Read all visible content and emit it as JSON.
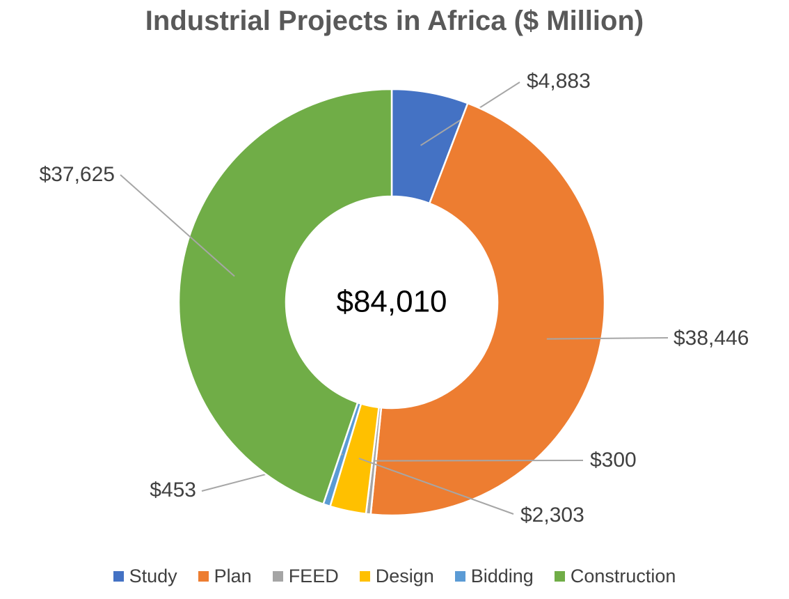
{
  "chart_data": {
    "type": "pie",
    "title": "Industrial Projects in Africa ($ Million)",
    "center_label": "$84,010",
    "categories": [
      "Study",
      "Plan",
      "FEED",
      "Design",
      "Bidding",
      "Construction"
    ],
    "values": [
      4883,
      38446,
      300,
      2303,
      453,
      37625
    ],
    "data_labels": [
      "$4,883",
      "$38,446",
      "$300",
      "$2,303",
      "$453",
      "$37,625"
    ],
    "colors": [
      "#4472C4",
      "#ED7D31",
      "#A5A5A5",
      "#FFC000",
      "#5B9BD5",
      "#70AD47"
    ],
    "donut": true,
    "legend_position": "bottom"
  }
}
